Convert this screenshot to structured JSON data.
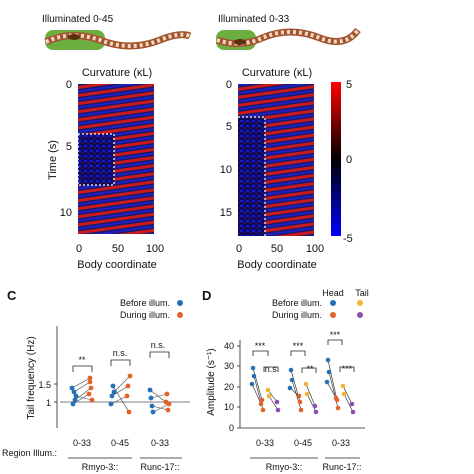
{
  "worms": {
    "left_label": "Illuminated 0-45",
    "right_label": "Illuminated 0-33"
  },
  "kymographs": {
    "left": {
      "title": "Curvature (κL)",
      "y_axis_label": "Time (s)",
      "y_ticks": [
        "0",
        "5",
        "10"
      ],
      "x_ticks": [
        "0",
        "50",
        "100"
      ],
      "x_axis_label": "Body coordinate"
    },
    "right": {
      "title": "Curvature (κL)",
      "y_ticks": [
        "0",
        "5",
        "10",
        "15"
      ],
      "x_ticks": [
        "0",
        "50",
        "100"
      ],
      "x_axis_label": "Body coordinate"
    },
    "colorbar": {
      "ticks": [
        "5",
        "0",
        "-5"
      ],
      "colors": [
        "#ff0000",
        "#000000",
        "#0000ff"
      ]
    }
  },
  "panel_c": {
    "letter": "C",
    "legend": [
      "Before illum.",
      "During illum."
    ],
    "y_axis_label": "Tail frequency (Hz)",
    "y_ticks": [
      "1.5",
      "1"
    ],
    "significance": [
      "**",
      "n.s.",
      "n.s."
    ],
    "conditions": [
      "0-33",
      "0-45",
      "0-33"
    ],
    "groups": [
      "Rmyo-3::",
      "Runc-17::"
    ]
  },
  "panel_d": {
    "letter": "D",
    "legend": [
      "Before illum.",
      "During illum."
    ],
    "legend_head_tail": [
      "Head",
      "Tail"
    ],
    "y_axis_label": "Amplitude (s⁻¹)",
    "y_ticks": [
      "40",
      "30",
      "20",
      "10",
      "0"
    ],
    "significance": [
      "***",
      "n.s.",
      "***",
      "**",
      "***",
      "***"
    ],
    "conditions": [
      "0-33",
      "0-45",
      "0-33"
    ],
    "groups": [
      "Rmyo-3::",
      "Runc-17::"
    ]
  },
  "region_label": "Region Illum.:",
  "colors": {
    "before": "#2471b8",
    "during": "#e2622a",
    "tail_before": "#f2b233",
    "tail_during": "#8a4fb0",
    "worm_green": "#6cae3f",
    "worm_red": "#d0694c"
  }
}
